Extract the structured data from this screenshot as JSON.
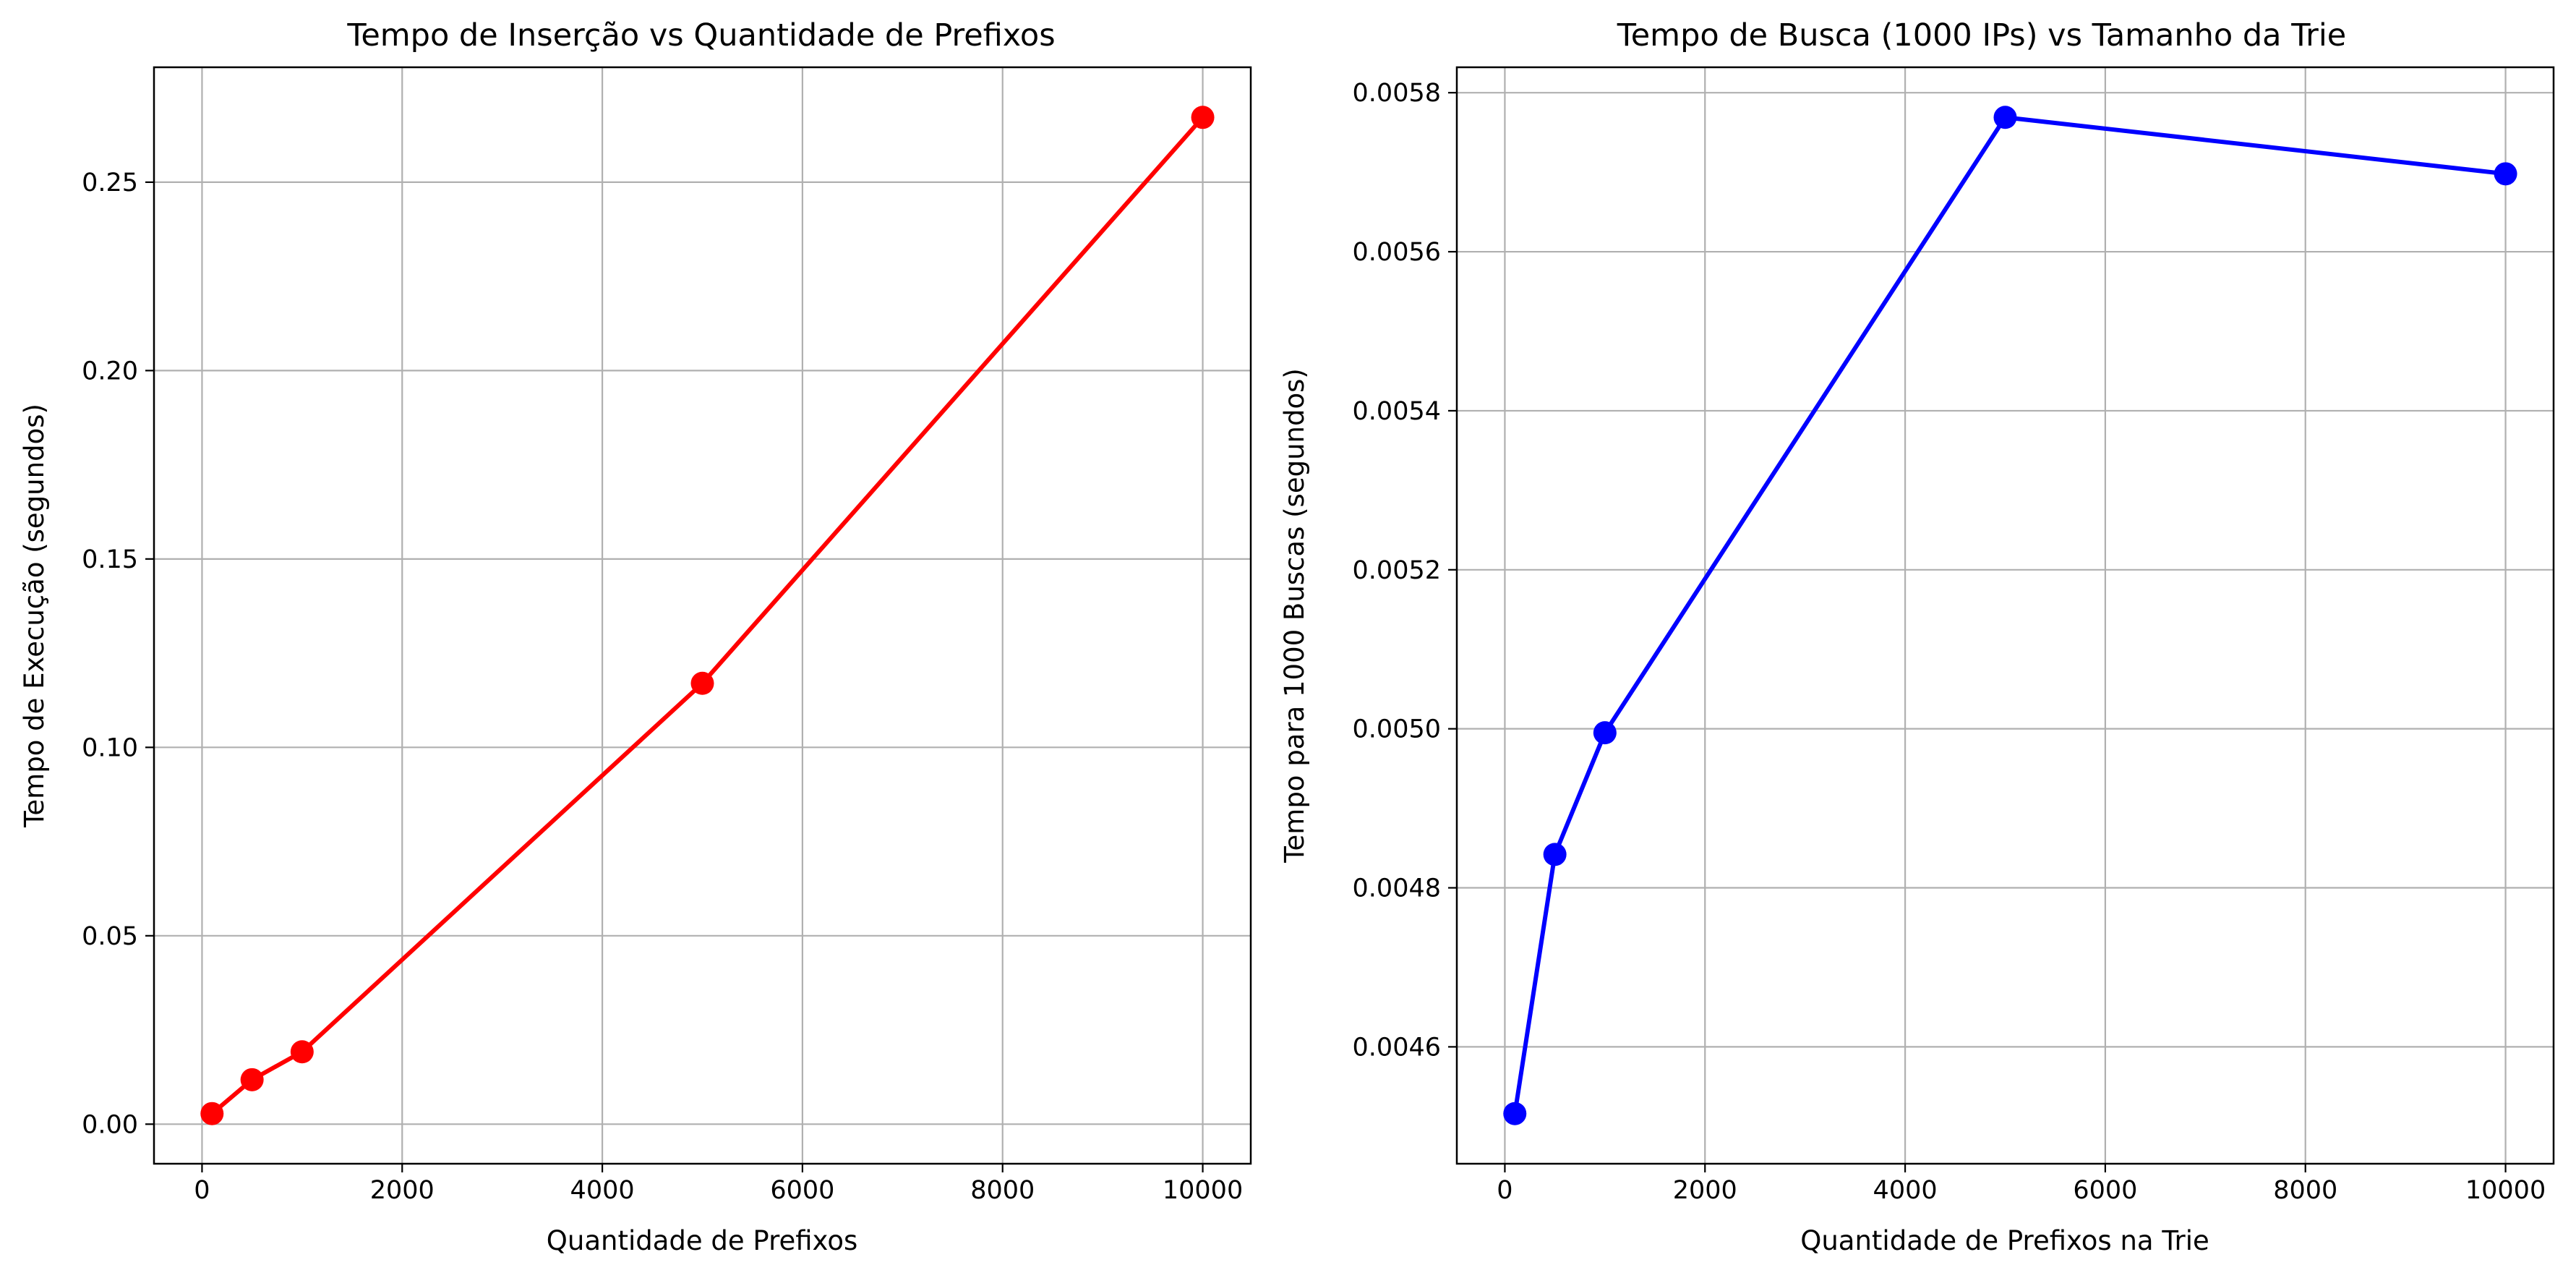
{
  "chart_data": [
    {
      "type": "line",
      "title": "Tempo de Inserção vs Quantidade de Prefixos",
      "xlabel": "Quantidade de Prefixos",
      "ylabel": "Tempo de Execução (segundos)",
      "x": [
        100,
        500,
        1000,
        5000,
        10000
      ],
      "y": [
        0.0028,
        0.0118,
        0.0192,
        0.117,
        0.2672
      ],
      "xlim": [
        -480,
        10480
      ],
      "ylim": [
        -0.0105,
        0.2805
      ],
      "xticks": [
        0,
        2000,
        4000,
        6000,
        8000,
        10000
      ],
      "xtick_labels": [
        "0",
        "2000",
        "4000",
        "6000",
        "8000",
        "10000"
      ],
      "yticks": [
        0,
        0.05,
        0.1,
        0.15,
        0.2,
        0.25
      ],
      "ytick_labels": [
        "0.00",
        "0.05",
        "0.10",
        "0.15",
        "0.20",
        "0.25"
      ],
      "color": "#ff0000",
      "marker": "circle",
      "grid": true
    },
    {
      "type": "line",
      "title": "Tempo de Busca (1000 IPs) vs Tamanho da Trie",
      "xlabel": "Quantidade de Prefixos na Trie",
      "ylabel": "Tempo para 1000 Buscas (segundos)",
      "x": [
        100,
        500,
        1000,
        5000,
        10000
      ],
      "y": [
        0.004516,
        0.004842,
        0.004995,
        0.005769,
        0.005698
      ],
      "xlim": [
        -480,
        10480
      ],
      "ylim": [
        0.004453,
        0.005832
      ],
      "xticks": [
        0,
        2000,
        4000,
        6000,
        8000,
        10000
      ],
      "xtick_labels": [
        "0",
        "2000",
        "4000",
        "6000",
        "8000",
        "10000"
      ],
      "yticks": [
        0.0046,
        0.0048,
        0.005,
        0.0052,
        0.0054,
        0.0056,
        0.0058
      ],
      "ytick_labels": [
        "0.0046",
        "0.0048",
        "0.0050",
        "0.0052",
        "0.0054",
        "0.0056",
        "0.0058"
      ],
      "color": "#0000ff",
      "marker": "circle",
      "grid": true
    }
  ]
}
